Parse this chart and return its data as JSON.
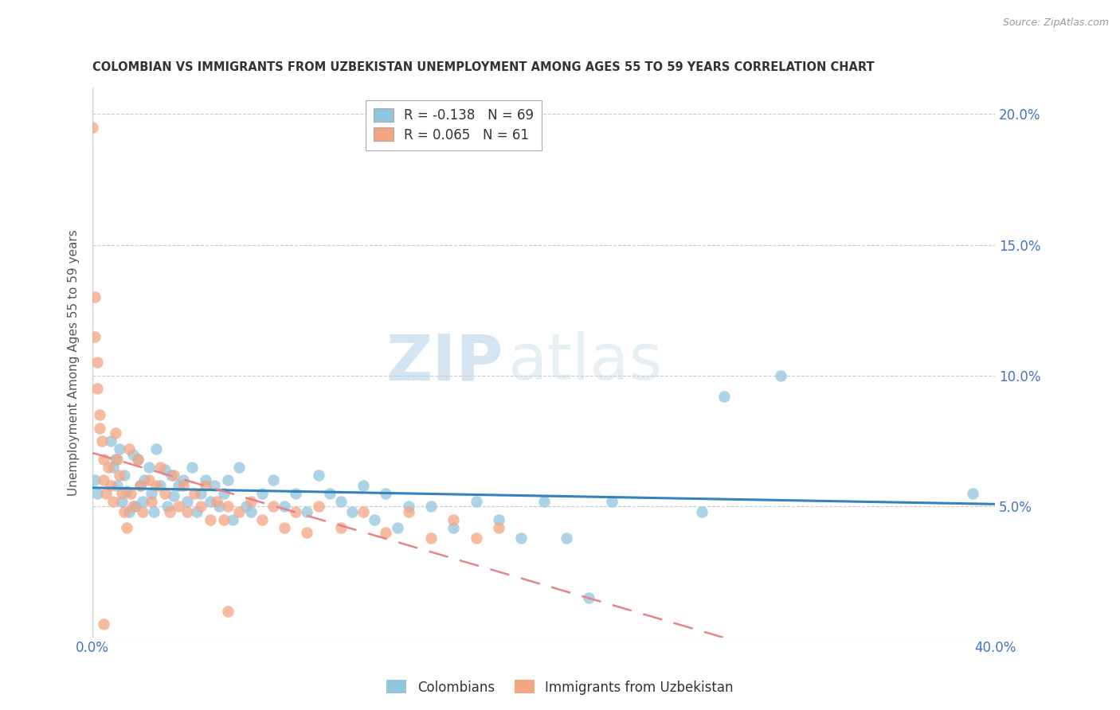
{
  "title": "COLOMBIAN VS IMMIGRANTS FROM UZBEKISTAN UNEMPLOYMENT AMONG AGES 55 TO 59 YEARS CORRELATION CHART",
  "source": "Source: ZipAtlas.com",
  "ylabel": "Unemployment Among Ages 55 to 59 years",
  "xlim": [
    0.0,
    0.4
  ],
  "ylim": [
    0.0,
    0.21
  ],
  "xticks": [
    0.0,
    0.05,
    0.1,
    0.15,
    0.2,
    0.25,
    0.3,
    0.35,
    0.4
  ],
  "yticks": [
    0.0,
    0.05,
    0.1,
    0.15,
    0.2
  ],
  "yticklabels_right": [
    "",
    "5.0%",
    "10.0%",
    "15.0%",
    "20.0%"
  ],
  "blue_color": "#92c5de",
  "pink_color": "#f4a582",
  "blue_line_color": "#3182bd",
  "pink_line_color": "#e8828a",
  "legend_blue_label": "R = -0.138   N = 69",
  "legend_pink_label": "R = 0.065   N = 61",
  "legend_bottom_blue": "Colombians",
  "legend_bottom_pink": "Immigrants from Uzbekistan",
  "watermark_zip": "ZIP",
  "watermark_atlas": "atlas",
  "blue_scatter_x": [
    0.001,
    0.002,
    0.008,
    0.009,
    0.01,
    0.011,
    0.012,
    0.013,
    0.014,
    0.015,
    0.016,
    0.018,
    0.019,
    0.02,
    0.021,
    0.022,
    0.023,
    0.025,
    0.026,
    0.027,
    0.028,
    0.03,
    0.032,
    0.033,
    0.035,
    0.036,
    0.038,
    0.04,
    0.042,
    0.044,
    0.046,
    0.048,
    0.05,
    0.052,
    0.054,
    0.056,
    0.058,
    0.06,
    0.062,
    0.065,
    0.068,
    0.07,
    0.075,
    0.08,
    0.085,
    0.09,
    0.095,
    0.1,
    0.105,
    0.11,
    0.115,
    0.12,
    0.125,
    0.13,
    0.135,
    0.14,
    0.15,
    0.16,
    0.17,
    0.18,
    0.19,
    0.2,
    0.21,
    0.22,
    0.23,
    0.27,
    0.28,
    0.305,
    0.39
  ],
  "blue_scatter_y": [
    0.06,
    0.055,
    0.075,
    0.065,
    0.068,
    0.058,
    0.072,
    0.052,
    0.062,
    0.056,
    0.048,
    0.07,
    0.05,
    0.068,
    0.058,
    0.052,
    0.06,
    0.065,
    0.055,
    0.048,
    0.072,
    0.058,
    0.064,
    0.05,
    0.062,
    0.054,
    0.058,
    0.06,
    0.052,
    0.065,
    0.048,
    0.055,
    0.06,
    0.052,
    0.058,
    0.05,
    0.055,
    0.06,
    0.045,
    0.065,
    0.05,
    0.048,
    0.055,
    0.06,
    0.05,
    0.055,
    0.048,
    0.062,
    0.055,
    0.052,
    0.048,
    0.058,
    0.045,
    0.055,
    0.042,
    0.05,
    0.05,
    0.042,
    0.052,
    0.045,
    0.038,
    0.052,
    0.038,
    0.015,
    0.052,
    0.048,
    0.092,
    0.1,
    0.055
  ],
  "pink_scatter_x": [
    0.0,
    0.001,
    0.001,
    0.002,
    0.002,
    0.003,
    0.003,
    0.004,
    0.005,
    0.005,
    0.006,
    0.007,
    0.008,
    0.009,
    0.01,
    0.011,
    0.012,
    0.013,
    0.014,
    0.015,
    0.016,
    0.017,
    0.018,
    0.02,
    0.021,
    0.022,
    0.025,
    0.026,
    0.028,
    0.03,
    0.032,
    0.034,
    0.036,
    0.038,
    0.04,
    0.042,
    0.045,
    0.048,
    0.05,
    0.052,
    0.055,
    0.058,
    0.06,
    0.065,
    0.07,
    0.075,
    0.08,
    0.085,
    0.09,
    0.095,
    0.1,
    0.11,
    0.12,
    0.13,
    0.14,
    0.15,
    0.16,
    0.17,
    0.18,
    0.06,
    0.005
  ],
  "pink_scatter_y": [
    0.195,
    0.13,
    0.115,
    0.105,
    0.095,
    0.085,
    0.08,
    0.075,
    0.068,
    0.06,
    0.055,
    0.065,
    0.058,
    0.052,
    0.078,
    0.068,
    0.062,
    0.055,
    0.048,
    0.042,
    0.072,
    0.055,
    0.05,
    0.068,
    0.058,
    0.048,
    0.06,
    0.052,
    0.058,
    0.065,
    0.055,
    0.048,
    0.062,
    0.05,
    0.058,
    0.048,
    0.055,
    0.05,
    0.058,
    0.045,
    0.052,
    0.045,
    0.05,
    0.048,
    0.052,
    0.045,
    0.05,
    0.042,
    0.048,
    0.04,
    0.05,
    0.042,
    0.048,
    0.04,
    0.048,
    0.038,
    0.045,
    0.038,
    0.042,
    0.01,
    0.005
  ]
}
